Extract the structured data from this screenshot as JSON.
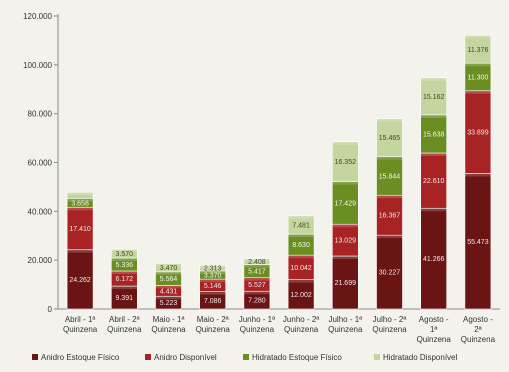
{
  "chart_data": {
    "type": "bar",
    "stacked": true,
    "categories": [
      [
        "Abril - 1ª",
        "Quinzena"
      ],
      [
        "Abril - 2ª",
        "Quinzena"
      ],
      [
        "Maio - 1ª",
        "Quinzena"
      ],
      [
        "Maio - 2ª",
        "Quinzena"
      ],
      [
        "Junho - 1ª",
        "Quinzena"
      ],
      [
        "Junho - 2ª",
        "Quinzena"
      ],
      [
        "Julho - 1ª",
        "Quinzena"
      ],
      [
        "Julho - 2ª",
        "Quinzena"
      ],
      [
        "Agosto -",
        "1ª",
        "Quinzena"
      ],
      [
        "Agosto -",
        "2ª",
        "Quinzena"
      ]
    ],
    "series": [
      {
        "name": "Anidro Estoque Físico",
        "color": "#6b1414",
        "values": [
          24262,
          9391,
          5223,
          7086,
          7280,
          12002,
          21699,
          30227,
          41266,
          55473
        ],
        "labels": [
          "24.262",
          "9.391",
          "5.223",
          "7.086",
          "7.280",
          "12.002",
          "21.699",
          "30.227",
          "41.266",
          "55.473"
        ]
      },
      {
        "name": "Anidro Disponível",
        "color": "#a82424",
        "values": [
          17410,
          6172,
          4431,
          5146,
          5527,
          10042,
          13029,
          16367,
          22610,
          33899
        ],
        "labels": [
          "17.410",
          "6.172",
          "4.431",
          "5.146",
          "5.527",
          "10.042",
          "13.029",
          "16.367",
          "22.610",
          "33.899"
        ]
      },
      {
        "name": "Hidratado Estoque Físico",
        "color": "#6b8e23",
        "values": [
          3658,
          5336,
          5564,
          3370,
          5417,
          8630,
          17429,
          15844,
          15638,
          11300
        ],
        "labels": [
          "3.658",
          "5.336",
          "5.564",
          "3.370",
          "5.417",
          "8.630",
          "17.429",
          "15.844",
          "15.638",
          "11.300"
        ]
      },
      {
        "name": "Hidratado Disponível",
        "color": "#c5d5a0",
        "values": [
          2500,
          3570,
          3470,
          2313,
          2408,
          7481,
          16352,
          15465,
          15162,
          11376
        ],
        "labels": [
          "",
          "3.570",
          "3.470",
          "2.313",
          "2.408",
          "7.481",
          "16.352",
          "15.465",
          "15.162",
          "11.376"
        ]
      }
    ],
    "ylim": [
      0,
      120000
    ],
    "yticks": [
      0,
      20000,
      40000,
      60000,
      80000,
      100000,
      120000
    ],
    "ytick_labels": [
      "0",
      "20.000",
      "40.000",
      "60.000",
      "80.000",
      "100.000",
      "120.000"
    ],
    "grid": false,
    "legend": "bottom",
    "title": "",
    "xlabel": "",
    "ylabel": ""
  }
}
